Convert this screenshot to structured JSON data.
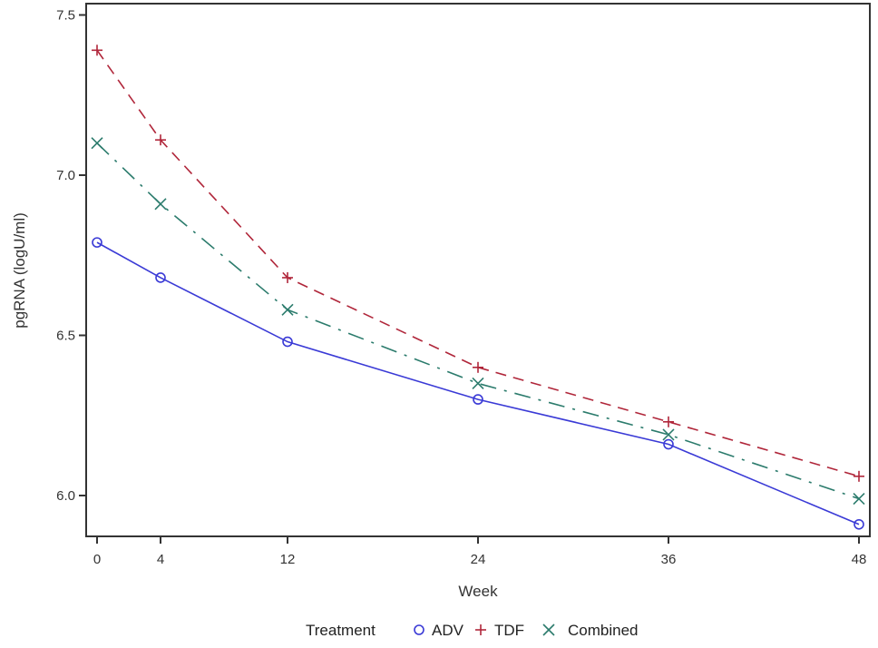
{
  "chart_data": {
    "type": "line",
    "title": "",
    "xlabel": "Week",
    "ylabel": "pgRNA (logU/ml)",
    "x": [
      0,
      4,
      12,
      24,
      36,
      48
    ],
    "xticks": [
      "0",
      "4",
      "12",
      "24",
      "36",
      "48"
    ],
    "xlim": [
      -0.7,
      48.7
    ],
    "yticks": [
      "6.0",
      "6.5",
      "7.0",
      "7.5"
    ],
    "ytick_values": [
      6.0,
      6.5,
      7.0,
      7.5
    ],
    "ylim": [
      5.87,
      7.53
    ],
    "grid": false,
    "legend": {
      "title": "Treatment",
      "placement": "bottom"
    },
    "series": [
      {
        "name": "ADV",
        "marker": "circle",
        "line": "solid",
        "color": "#3a3ad6",
        "values": [
          6.79,
          6.68,
          6.48,
          6.3,
          6.16,
          5.91
        ]
      },
      {
        "name": "TDF",
        "marker": "plus",
        "line": "dashed",
        "color": "#b0263a",
        "values": [
          7.39,
          7.11,
          6.68,
          6.4,
          6.23,
          6.06
        ]
      },
      {
        "name": "Combined",
        "marker": "x",
        "line": "dashdot",
        "color": "#2b7b6c",
        "values": [
          7.1,
          6.91,
          6.58,
          6.35,
          6.19,
          5.99
        ]
      }
    ]
  }
}
